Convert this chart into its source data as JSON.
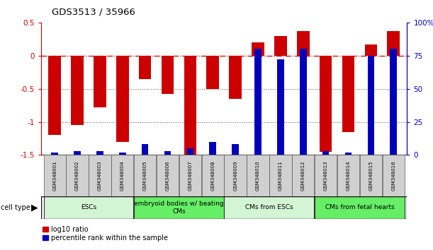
{
  "title": "GDS3513 / 35966",
  "samples": [
    "GSM348001",
    "GSM348002",
    "GSM348003",
    "GSM348004",
    "GSM348005",
    "GSM348006",
    "GSM348007",
    "GSM348008",
    "GSM348009",
    "GSM348010",
    "GSM348011",
    "GSM348012",
    "GSM348013",
    "GSM348014",
    "GSM348015",
    "GSM348016"
  ],
  "log10_ratio": [
    -1.2,
    -1.05,
    -0.78,
    -1.3,
    -0.35,
    -0.58,
    -1.5,
    -0.5,
    -0.65,
    0.2,
    0.3,
    0.37,
    -1.45,
    -1.15,
    0.17,
    0.37
  ],
  "percentile_rank": [
    2,
    3,
    3,
    2,
    8,
    3,
    5,
    10,
    8,
    80,
    72,
    80,
    3,
    2,
    75,
    80
  ],
  "cell_type_groups": [
    {
      "label": "ESCs",
      "start": 0,
      "end": 3,
      "color": "#d4f5d4"
    },
    {
      "label": "embryoid bodies w/ beating\nCMs",
      "start": 4,
      "end": 7,
      "color": "#66ee66"
    },
    {
      "label": "CMs from ESCs",
      "start": 8,
      "end": 11,
      "color": "#d4f5d4"
    },
    {
      "label": "CMs from fetal hearts",
      "start": 12,
      "end": 15,
      "color": "#66ee66"
    }
  ],
  "ylim_left": [
    -1.5,
    0.5
  ],
  "ylim_right": [
    0,
    100
  ],
  "bar_color_red": "#cc0000",
  "bar_color_blue": "#0000bb",
  "zero_line_color": "#cc0000",
  "dotted_line_color": "#555555",
  "bg_color": "#ffffff",
  "plot_bg": "#ffffff",
  "red_bar_width": 0.55,
  "blue_bar_width": 0.3,
  "legend_red_label": "log10 ratio",
  "legend_blue_label": "percentile rank within the sample"
}
